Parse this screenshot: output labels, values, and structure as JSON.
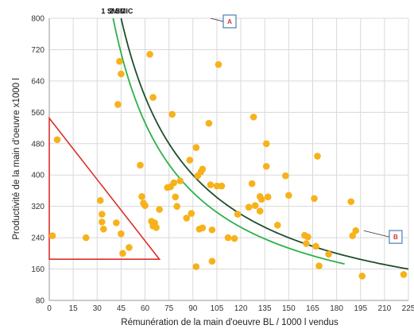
{
  "chart_data": {
    "type": "scatter",
    "xlabel": "Rémunération de la main d'oeuvre BL / 1000 l vendus",
    "ylabel": "Productivité de la main d'oeuvre x1000 l",
    "xlim": [
      0,
      225
    ],
    "ylim": [
      80,
      800
    ],
    "x_ticks": [
      "0",
      "15",
      "30",
      "45",
      "60",
      "75",
      "90",
      "105",
      "120",
      "135",
      "150",
      "165",
      "180",
      "195",
      "210",
      "225"
    ],
    "y_ticks": [
      "80",
      "160",
      "240",
      "320",
      "400",
      "480",
      "560",
      "640",
      "720",
      "800"
    ],
    "grid": true,
    "point_color": "#f7b21b",
    "points": [
      [
        2,
        245
      ],
      [
        5,
        490
      ],
      [
        23,
        240
      ],
      [
        32,
        335
      ],
      [
        33,
        300
      ],
      [
        33,
        280
      ],
      [
        34,
        262
      ],
      [
        42,
        278
      ],
      [
        43,
        580
      ],
      [
        44,
        690
      ],
      [
        45,
        250
      ],
      [
        45,
        658
      ],
      [
        46,
        200
      ],
      [
        50,
        215
      ],
      [
        57,
        425
      ],
      [
        58,
        345
      ],
      [
        59,
        328
      ],
      [
        60,
        322
      ],
      [
        63,
        708
      ],
      [
        64,
        282
      ],
      [
        65,
        598
      ],
      [
        65,
        270
      ],
      [
        66,
        278
      ],
      [
        67,
        266
      ],
      [
        69,
        312
      ],
      [
        74,
        368
      ],
      [
        76,
        370
      ],
      [
        77,
        555
      ],
      [
        78,
        380
      ],
      [
        79,
        344
      ],
      [
        80,
        320
      ],
      [
        82,
        385
      ],
      [
        86,
        290
      ],
      [
        88,
        438
      ],
      [
        89,
        302
      ],
      [
        92,
        470
      ],
      [
        92,
        166
      ],
      [
        93,
        398
      ],
      [
        94,
        262
      ],
      [
        95,
        408
      ],
      [
        96,
        415
      ],
      [
        96,
        265
      ],
      [
        100,
        532
      ],
      [
        101,
        375
      ],
      [
        102,
        180
      ],
      [
        102,
        260
      ],
      [
        105,
        372
      ],
      [
        106,
        682
      ],
      [
        108,
        372
      ],
      [
        112,
        240
      ],
      [
        116,
        238
      ],
      [
        118,
        300
      ],
      [
        125,
        318
      ],
      [
        127,
        378
      ],
      [
        128,
        548
      ],
      [
        129,
        322
      ],
      [
        132,
        345
      ],
      [
        132,
        308
      ],
      [
        133,
        338
      ],
      [
        136,
        480
      ],
      [
        136,
        422
      ],
      [
        137,
        344
      ],
      [
        143,
        272
      ],
      [
        148,
        398
      ],
      [
        150,
        348
      ],
      [
        160,
        246
      ],
      [
        161,
        225
      ],
      [
        162,
        242
      ],
      [
        166,
        340
      ],
      [
        167,
        218
      ],
      [
        168,
        448
      ],
      [
        169,
        168
      ],
      [
        175,
        198
      ],
      [
        189,
        332
      ],
      [
        190,
        245
      ],
      [
        192,
        258
      ],
      [
        196,
        142
      ],
      [
        222,
        146
      ]
    ],
    "series": [
      {
        "name": "1 SMIC",
        "k": 32000,
        "color": "#2db04a",
        "x_end": 185
      },
      {
        "name": "2 SMIC",
        "k": 36000,
        "color": "#1f4f2b",
        "x_end": 225
      }
    ],
    "triangle": {
      "vertices": [
        [
          0,
          545
        ],
        [
          0,
          185
        ],
        [
          69,
          185
        ]
      ],
      "color": "#d9312b"
    },
    "markers": [
      {
        "text": "A",
        "at": [
          113,
          792
        ],
        "line_to": [
          101,
          800
        ]
      },
      {
        "text": "B",
        "at": [
          217,
          242
        ],
        "line_to": [
          197,
          258
        ]
      }
    ]
  }
}
